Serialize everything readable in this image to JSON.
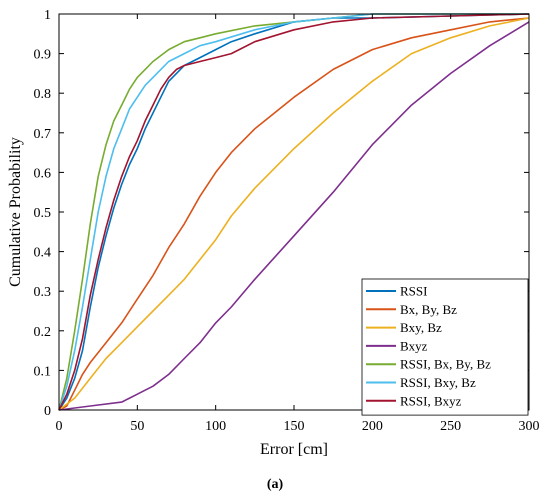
{
  "chart_data": {
    "type": "line",
    "title": "",
    "xlabel": "Error [cm]",
    "ylabel": "Cumulative Probability",
    "xlim": [
      0,
      300
    ],
    "ylim": [
      0,
      1
    ],
    "xticks": [
      0,
      50,
      100,
      150,
      200,
      250,
      300
    ],
    "yticks": [
      0,
      0.1,
      0.2,
      0.3,
      0.4,
      0.5,
      0.6,
      0.7,
      0.8,
      0.9,
      1
    ],
    "grid": false,
    "legend_position": "bottom-right",
    "caption": "(a)",
    "series": [
      {
        "name": "RSSI",
        "color": "#0072BD",
        "x": [
          0,
          5,
          10,
          15,
          20,
          25,
          30,
          35,
          40,
          45,
          50,
          55,
          60,
          65,
          70,
          75,
          80,
          90,
          100,
          110,
          125,
          150,
          175,
          200,
          250,
          300
        ],
        "y": [
          0,
          0.03,
          0.08,
          0.15,
          0.26,
          0.36,
          0.44,
          0.51,
          0.57,
          0.62,
          0.66,
          0.71,
          0.75,
          0.79,
          0.83,
          0.85,
          0.87,
          0.89,
          0.91,
          0.93,
          0.95,
          0.98,
          0.99,
          0.99,
          0.995,
          1.0
        ]
      },
      {
        "name": "Bx, By, Bz",
        "color": "#D95319",
        "x": [
          0,
          5,
          10,
          15,
          20,
          30,
          40,
          50,
          60,
          70,
          80,
          90,
          100,
          110,
          125,
          150,
          175,
          200,
          225,
          250,
          275,
          300
        ],
        "y": [
          0,
          0.01,
          0.05,
          0.09,
          0.12,
          0.17,
          0.22,
          0.28,
          0.34,
          0.41,
          0.47,
          0.54,
          0.6,
          0.65,
          0.71,
          0.79,
          0.86,
          0.91,
          0.94,
          0.96,
          0.98,
          0.99
        ]
      },
      {
        "name": "Bxy, Bz",
        "color": "#EDB120",
        "x": [
          0,
          10,
          20,
          30,
          40,
          50,
          60,
          70,
          80,
          90,
          100,
          110,
          125,
          150,
          175,
          200,
          225,
          250,
          275,
          300
        ],
        "y": [
          0,
          0.03,
          0.08,
          0.13,
          0.17,
          0.21,
          0.25,
          0.29,
          0.33,
          0.38,
          0.43,
          0.49,
          0.56,
          0.66,
          0.75,
          0.83,
          0.9,
          0.94,
          0.97,
          0.99
        ]
      },
      {
        "name": "Bxyz",
        "color": "#7E2F8E",
        "x": [
          0,
          20,
          40,
          50,
          60,
          70,
          80,
          90,
          100,
          110,
          125,
          150,
          175,
          200,
          225,
          250,
          275,
          300
        ],
        "y": [
          0,
          0.01,
          0.02,
          0.04,
          0.06,
          0.09,
          0.13,
          0.17,
          0.22,
          0.26,
          0.33,
          0.44,
          0.55,
          0.67,
          0.77,
          0.85,
          0.92,
          0.98
        ]
      },
      {
        "name": "RSSI, Bx, By, Bz",
        "color": "#77AC30",
        "x": [
          0,
          5,
          10,
          15,
          20,
          25,
          30,
          35,
          40,
          45,
          50,
          55,
          60,
          70,
          80,
          90,
          100,
          125,
          150,
          175,
          200,
          300
        ],
        "y": [
          0,
          0.08,
          0.2,
          0.33,
          0.47,
          0.59,
          0.67,
          0.73,
          0.77,
          0.81,
          0.84,
          0.86,
          0.88,
          0.91,
          0.93,
          0.94,
          0.95,
          0.97,
          0.98,
          0.99,
          1.0,
          1.0
        ]
      },
      {
        "name": "RSSI, Bxy, Bz",
        "color": "#4DBEEE",
        "x": [
          0,
          5,
          10,
          15,
          20,
          25,
          30,
          35,
          40,
          45,
          50,
          55,
          60,
          70,
          80,
          90,
          100,
          125,
          150,
          175,
          200,
          300
        ],
        "y": [
          0,
          0.06,
          0.15,
          0.26,
          0.38,
          0.5,
          0.59,
          0.66,
          0.71,
          0.76,
          0.79,
          0.82,
          0.84,
          0.88,
          0.9,
          0.92,
          0.93,
          0.96,
          0.98,
          0.99,
          1.0,
          1.0
        ]
      },
      {
        "name": "RSSI, Bxyz",
        "color": "#A2142F",
        "x": [
          0,
          5,
          10,
          15,
          20,
          25,
          30,
          35,
          40,
          45,
          50,
          55,
          60,
          65,
          70,
          75,
          80,
          90,
          100,
          110,
          125,
          150,
          175,
          200,
          250,
          300
        ],
        "y": [
          0,
          0.04,
          0.1,
          0.18,
          0.29,
          0.38,
          0.46,
          0.53,
          0.59,
          0.64,
          0.68,
          0.73,
          0.77,
          0.81,
          0.84,
          0.86,
          0.87,
          0.88,
          0.89,
          0.9,
          0.93,
          0.96,
          0.98,
          0.99,
          0.995,
          1.0
        ]
      }
    ]
  }
}
